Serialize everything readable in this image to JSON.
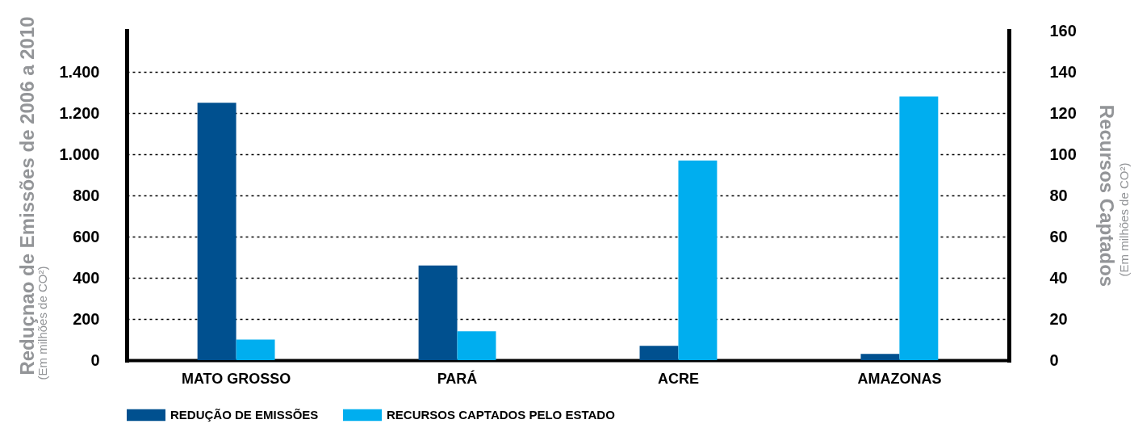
{
  "chart_data": {
    "type": "bar",
    "categories": [
      "MATO GROSSO",
      "PARÁ",
      "ACRE",
      "AMAZONAS"
    ],
    "series": [
      {
        "name": "REDUÇÃO DE EMISSÕES",
        "color": "#00508f",
        "values": [
          1250,
          460,
          70,
          30
        ]
      },
      {
        "name": "RECURSOS CAPTADOS PELO ESTADO",
        "color": "#00aeef",
        "values": [
          10,
          14,
          97,
          128
        ],
        "axis": "y2"
      }
    ],
    "ylabel": "Reduçnao de Emissões de 2006 a 2010",
    "y2label": "Recursos Captados",
    "annotations": [
      "(Em milhões de CO²)",
      "(Em milhões de CO²)"
    ],
    "ylim": [
      0,
      1600
    ],
    "yticks": [
      0,
      200,
      400,
      600,
      800,
      {
        "value": 1000,
        "label": "1.000"
      },
      {
        "value": 1200,
        "label": "1.200"
      },
      {
        "value": 1400,
        "label": "1.400"
      }
    ],
    "y2lim": [
      0,
      160
    ],
    "y2ticks": [
      0,
      20,
      40,
      60,
      80,
      100,
      120,
      140,
      160
    ],
    "grid": "y",
    "legend": "bottom left"
  }
}
